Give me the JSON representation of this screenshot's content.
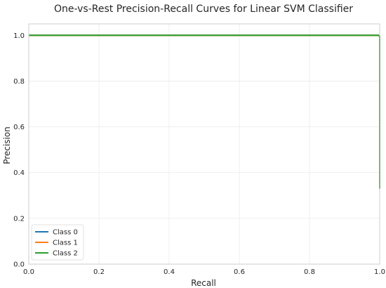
{
  "chart_data": {
    "type": "line",
    "title": "One-vs-Rest Precision-Recall Curves for Linear SVM Classifier",
    "xlabel": "Recall",
    "ylabel": "Precision",
    "xlim": [
      0.0,
      1.0
    ],
    "ylim": [
      0.0,
      1.05
    ],
    "xticks": [
      "0.0",
      "0.2",
      "0.4",
      "0.6",
      "0.8",
      "1.0"
    ],
    "yticks": [
      "0.0",
      "0.2",
      "0.4",
      "0.6",
      "0.8",
      "1.0"
    ],
    "grid": true,
    "legend_position": "lower-left",
    "series": [
      {
        "name": "Class 0",
        "color": "#1f77b4",
        "points": [
          [
            0.0,
            1.0
          ],
          [
            0.997,
            1.0
          ],
          [
            1.0,
            0.995
          ],
          [
            1.0,
            0.33
          ]
        ]
      },
      {
        "name": "Class 1",
        "color": "#ff7f0e",
        "points": [
          [
            0.0,
            1.0
          ],
          [
            0.997,
            1.0
          ],
          [
            1.0,
            0.995
          ],
          [
            1.0,
            0.33
          ]
        ]
      },
      {
        "name": "Class 2",
        "color": "#2ca02c",
        "points": [
          [
            0.0,
            1.0
          ],
          [
            0.997,
            1.0
          ],
          [
            1.0,
            0.995
          ],
          [
            1.0,
            0.33
          ]
        ]
      }
    ]
  }
}
